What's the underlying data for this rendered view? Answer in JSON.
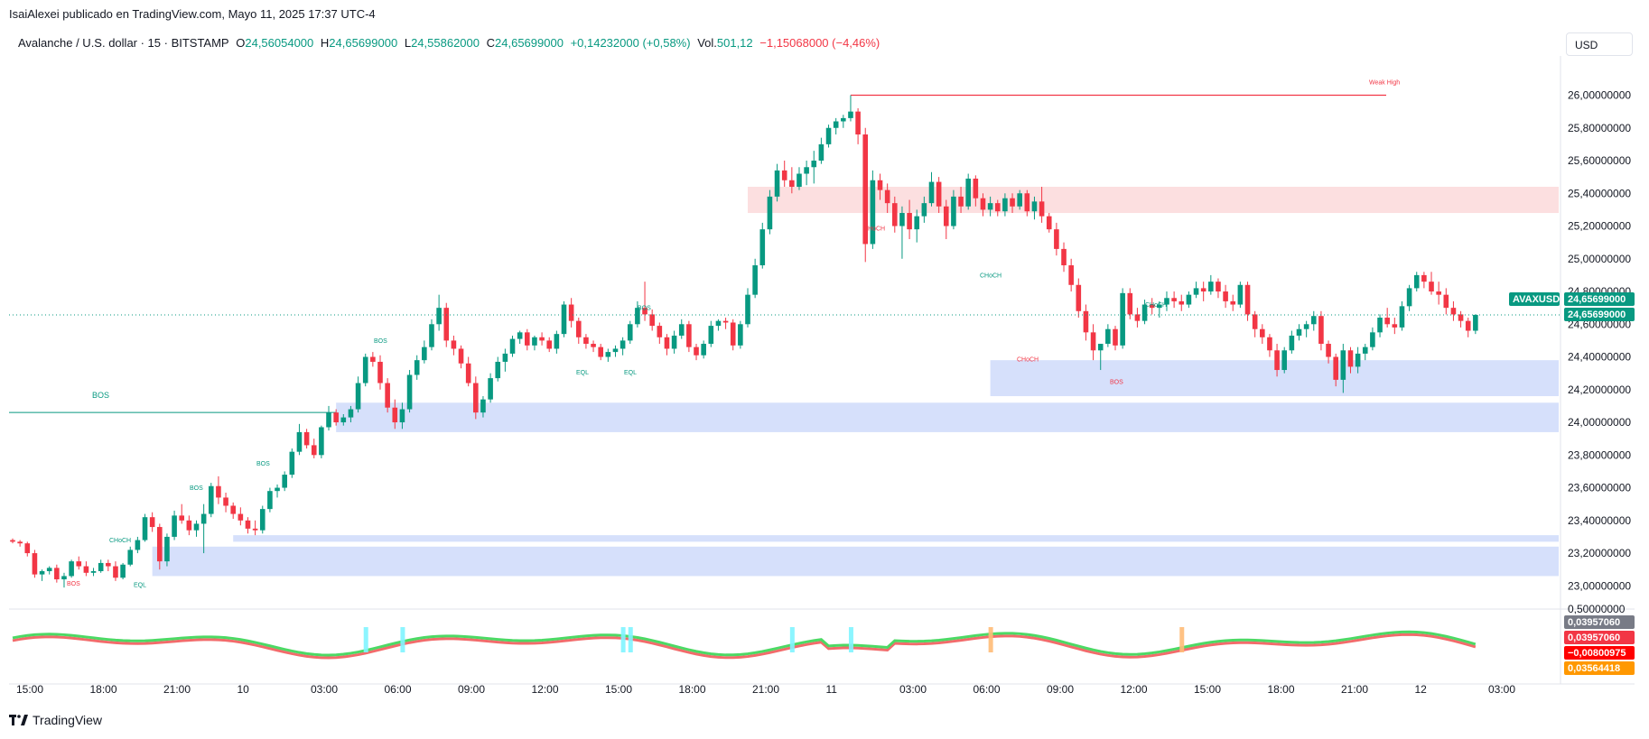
{
  "header": {
    "published": "IsaiAlexei publicado en TradingView.com, Mayo 11, 2025 17:37 UTC-4"
  },
  "legend": {
    "symbol": "Avalanche / U.S. dollar · 15 · BITSTAMP",
    "o_label": "O",
    "o_value": "24,56054000",
    "h_label": "H",
    "h_value": "24,65699000",
    "l_label": "L",
    "l_value": "24,55862000",
    "c_label": "C",
    "c_value": "24,65699000",
    "change": "+0,14232000 (+0,58%)",
    "vol_label": "Vol.",
    "vol_value": "501,12",
    "vol_change": "−1,15068000 (−4,46%)"
  },
  "currency_button": "USD",
  "footer": {
    "brand": "TradingView"
  },
  "colors": {
    "up": "#089981",
    "down": "#f23645",
    "zone_blue": "#d6e0fb",
    "zone_red": "#fcdfe0",
    "osc_green": "#4cd964",
    "osc_red": "#f26b6b"
  },
  "chart_data": {
    "type": "candlestick",
    "symbol": "AVAXUSD",
    "price_axis": {
      "ticks": [
        "26,00000000",
        "25,80000000",
        "25,60000000",
        "25,40000000",
        "25,20000000",
        "25,00000000",
        "24,80000000",
        "24,60000000",
        "24,40000000",
        "24,20000000",
        "24,00000000",
        "23,80000000",
        "23,60000000",
        "23,40000000",
        "23,20000000",
        "23,00000000"
      ],
      "range": [
        22.93,
        26.24
      ]
    },
    "last_price_labels": {
      "symbol": "AVAXUSD",
      "price": "24,65699000",
      "price2": "24,65699000"
    },
    "time_axis": [
      "15:00",
      "18:00",
      "21:00",
      "10",
      "03:00",
      "06:00",
      "09:00",
      "12:00",
      "15:00",
      "18:00",
      "21:00",
      "11",
      "03:00",
      "06:00",
      "09:00",
      "12:00",
      "15:00",
      "18:00",
      "21:00",
      "12",
      "03:00"
    ],
    "candles": [
      [
        23.28,
        23.29,
        23.26,
        23.27
      ],
      [
        23.27,
        23.28,
        23.24,
        23.26
      ],
      [
        23.26,
        23.27,
        23.18,
        23.2
      ],
      [
        23.2,
        23.22,
        23.05,
        23.07
      ],
      [
        23.07,
        23.1,
        23.03,
        23.09
      ],
      [
        23.09,
        23.12,
        23.07,
        23.11
      ],
      [
        23.11,
        23.13,
        23.02,
        23.04
      ],
      [
        23.04,
        23.08,
        22.99,
        23.06
      ],
      [
        23.06,
        23.16,
        23.05,
        23.15
      ],
      [
        23.15,
        23.18,
        23.1,
        23.12
      ],
      [
        23.12,
        23.15,
        23.06,
        23.08
      ],
      [
        23.08,
        23.11,
        23.06,
        23.09
      ],
      [
        23.09,
        23.16,
        23.08,
        23.14
      ],
      [
        23.14,
        23.16,
        23.09,
        23.12
      ],
      [
        23.12,
        23.15,
        23.03,
        23.05
      ],
      [
        23.05,
        23.14,
        23.04,
        23.13
      ],
      [
        23.13,
        23.24,
        23.12,
        23.22
      ],
      [
        23.22,
        23.3,
        23.2,
        23.28
      ],
      [
        23.28,
        23.44,
        23.27,
        23.42
      ],
      [
        23.42,
        23.45,
        23.33,
        23.36
      ],
      [
        23.36,
        23.38,
        23.1,
        23.15
      ],
      [
        23.15,
        23.32,
        23.12,
        23.3
      ],
      [
        23.3,
        23.46,
        23.28,
        23.43
      ],
      [
        23.43,
        23.5,
        23.38,
        23.4
      ],
      [
        23.4,
        23.43,
        23.31,
        23.34
      ],
      [
        23.34,
        23.4,
        23.3,
        23.38
      ],
      [
        23.38,
        23.5,
        23.2,
        23.44
      ],
      [
        23.44,
        23.63,
        23.42,
        23.61
      ],
      [
        23.61,
        23.67,
        23.5,
        23.54
      ],
      [
        23.54,
        23.57,
        23.45,
        23.49
      ],
      [
        23.49,
        23.51,
        23.41,
        23.44
      ],
      [
        23.44,
        23.48,
        23.37,
        23.4
      ],
      [
        23.4,
        23.42,
        23.32,
        23.35
      ],
      [
        23.35,
        23.4,
        23.31,
        23.34
      ],
      [
        23.34,
        23.49,
        23.32,
        23.47
      ],
      [
        23.47,
        23.6,
        23.45,
        23.58
      ],
      [
        23.58,
        23.62,
        23.54,
        23.6
      ],
      [
        23.6,
        23.7,
        23.58,
        23.68
      ],
      [
        23.68,
        23.84,
        23.66,
        23.82
      ],
      [
        23.82,
        23.99,
        23.8,
        23.94
      ],
      [
        23.94,
        23.96,
        23.84,
        23.86
      ],
      [
        23.86,
        23.9,
        23.78,
        23.8
      ],
      [
        23.8,
        23.98,
        23.78,
        23.97
      ],
      [
        23.97,
        24.1,
        23.95,
        24.06
      ],
      [
        24.06,
        24.08,
        23.98,
        24.0
      ],
      [
        24.0,
        24.05,
        23.98,
        24.03
      ],
      [
        24.03,
        24.1,
        24.0,
        24.08
      ],
      [
        24.08,
        24.28,
        24.06,
        24.24
      ],
      [
        24.24,
        24.42,
        24.22,
        24.4
      ],
      [
        24.4,
        24.43,
        24.34,
        24.37
      ],
      [
        24.37,
        24.41,
        24.2,
        24.24
      ],
      [
        24.24,
        24.27,
        24.06,
        24.09
      ],
      [
        24.09,
        24.14,
        23.96,
        24.0
      ],
      [
        24.0,
        24.12,
        23.96,
        24.08
      ],
      [
        24.08,
        24.32,
        24.06,
        24.29
      ],
      [
        24.29,
        24.41,
        24.26,
        24.38
      ],
      [
        24.38,
        24.5,
        24.36,
        24.46
      ],
      [
        24.46,
        24.63,
        24.44,
        24.6
      ],
      [
        24.6,
        24.78,
        24.56,
        24.7
      ],
      [
        24.7,
        24.73,
        24.46,
        24.5
      ],
      [
        24.5,
        24.53,
        24.41,
        24.45
      ],
      [
        24.45,
        24.47,
        24.33,
        24.36
      ],
      [
        24.36,
        24.4,
        24.22,
        24.24
      ],
      [
        24.24,
        24.28,
        24.02,
        24.06
      ],
      [
        24.06,
        24.16,
        24.03,
        24.14
      ],
      [
        24.14,
        24.3,
        24.12,
        24.27
      ],
      [
        24.27,
        24.4,
        24.25,
        24.37
      ],
      [
        24.37,
        24.45,
        24.31,
        24.42
      ],
      [
        24.42,
        24.53,
        24.4,
        24.51
      ],
      [
        24.51,
        24.56,
        24.48,
        24.55
      ],
      [
        24.55,
        24.57,
        24.44,
        24.47
      ],
      [
        24.47,
        24.53,
        24.44,
        24.52
      ],
      [
        24.52,
        24.55,
        24.47,
        24.5
      ],
      [
        24.5,
        24.52,
        24.43,
        24.45
      ],
      [
        24.45,
        24.56,
        24.42,
        24.54
      ],
      [
        24.54,
        24.74,
        24.52,
        24.72
      ],
      [
        24.72,
        24.76,
        24.58,
        24.62
      ],
      [
        24.62,
        24.64,
        24.48,
        24.52
      ],
      [
        24.52,
        24.54,
        24.45,
        24.48
      ],
      [
        24.48,
        24.5,
        24.43,
        24.46
      ],
      [
        24.46,
        24.48,
        24.38,
        24.4
      ],
      [
        24.4,
        24.45,
        24.37,
        24.43
      ],
      [
        24.43,
        24.47,
        24.4,
        24.45
      ],
      [
        24.45,
        24.52,
        24.41,
        24.5
      ],
      [
        24.5,
        24.62,
        24.48,
        24.6
      ],
      [
        24.6,
        24.74,
        24.58,
        24.7
      ],
      [
        24.7,
        24.86,
        24.62,
        24.66
      ],
      [
        24.66,
        24.69,
        24.56,
        24.59
      ],
      [
        24.59,
        24.61,
        24.48,
        24.52
      ],
      [
        24.52,
        24.54,
        24.41,
        24.45
      ],
      [
        24.45,
        24.56,
        24.42,
        24.53
      ],
      [
        24.53,
        24.63,
        24.51,
        24.6
      ],
      [
        24.6,
        24.62,
        24.43,
        24.46
      ],
      [
        24.46,
        24.48,
        24.38,
        24.41
      ],
      [
        24.41,
        24.5,
        24.39,
        24.48
      ],
      [
        24.48,
        24.62,
        24.46,
        24.59
      ],
      [
        24.59,
        24.63,
        24.56,
        24.62
      ],
      [
        24.62,
        24.64,
        24.57,
        24.61
      ],
      [
        24.61,
        24.63,
        24.44,
        24.47
      ],
      [
        24.47,
        24.62,
        24.45,
        24.6
      ],
      [
        24.6,
        24.82,
        24.58,
        24.78
      ],
      [
        24.78,
        25.0,
        24.76,
        24.96
      ],
      [
        24.96,
        25.22,
        24.94,
        25.18
      ],
      [
        25.18,
        25.42,
        25.15,
        25.38
      ],
      [
        25.38,
        25.58,
        25.35,
        25.54
      ],
      [
        25.54,
        25.6,
        25.44,
        25.48
      ],
      [
        25.48,
        25.56,
        25.4,
        25.44
      ],
      [
        25.44,
        25.56,
        25.42,
        25.52
      ],
      [
        25.52,
        25.6,
        25.45,
        25.56
      ],
      [
        25.56,
        25.66,
        25.46,
        25.6
      ],
      [
        25.6,
        25.74,
        25.58,
        25.7
      ],
      [
        25.7,
        25.82,
        25.68,
        25.8
      ],
      [
        25.8,
        25.86,
        25.76,
        25.84
      ],
      [
        25.84,
        25.88,
        25.8,
        25.86
      ],
      [
        25.86,
        26.0,
        25.84,
        25.9
      ],
      [
        25.9,
        25.92,
        25.7,
        25.76
      ],
      [
        25.76,
        25.8,
        24.98,
        25.09
      ],
      [
        25.09,
        25.54,
        25.06,
        25.48
      ],
      [
        25.48,
        25.52,
        25.36,
        25.42
      ],
      [
        25.42,
        25.46,
        25.28,
        25.34
      ],
      [
        25.34,
        25.38,
        25.16,
        25.2
      ],
      [
        25.2,
        25.32,
        25.0,
        25.28
      ],
      [
        25.28,
        25.36,
        25.12,
        25.18
      ],
      [
        25.18,
        25.3,
        25.1,
        25.26
      ],
      [
        25.26,
        25.38,
        25.22,
        25.34
      ],
      [
        25.34,
        25.53,
        25.32,
        25.47
      ],
      [
        25.47,
        25.5,
        25.28,
        25.32
      ],
      [
        25.32,
        25.36,
        25.12,
        25.2
      ],
      [
        25.2,
        25.42,
        25.18,
        25.38
      ],
      [
        25.38,
        25.44,
        25.28,
        25.32
      ],
      [
        25.32,
        25.52,
        25.3,
        25.49
      ],
      [
        25.49,
        25.51,
        25.32,
        25.37
      ],
      [
        25.37,
        25.4,
        25.26,
        25.3
      ],
      [
        25.3,
        25.38,
        25.26,
        25.34
      ],
      [
        25.34,
        25.36,
        25.26,
        25.29
      ],
      [
        25.29,
        25.4,
        25.26,
        25.37
      ],
      [
        25.37,
        25.4,
        25.28,
        25.32
      ],
      [
        25.32,
        25.42,
        25.3,
        25.4
      ],
      [
        25.4,
        25.42,
        25.26,
        25.29
      ],
      [
        25.29,
        25.38,
        25.24,
        25.35
      ],
      [
        25.35,
        25.44,
        25.22,
        25.26
      ],
      [
        25.26,
        25.28,
        25.16,
        25.18
      ],
      [
        25.18,
        25.22,
        25.02,
        25.06
      ],
      [
        25.06,
        25.1,
        24.92,
        24.96
      ],
      [
        24.96,
        25.0,
        24.8,
        24.84
      ],
      [
        24.84,
        24.88,
        24.64,
        24.68
      ],
      [
        24.68,
        24.72,
        24.5,
        24.55
      ],
      [
        24.55,
        24.6,
        24.38,
        24.44
      ],
      [
        24.44,
        24.48,
        24.32,
        24.48
      ],
      [
        24.48,
        24.6,
        24.46,
        24.57
      ],
      [
        24.57,
        24.59,
        24.44,
        24.47
      ],
      [
        24.47,
        24.82,
        24.45,
        24.79
      ],
      [
        24.79,
        24.82,
        24.63,
        24.66
      ],
      [
        24.66,
        24.7,
        24.58,
        24.62
      ],
      [
        24.62,
        24.75,
        24.6,
        24.72
      ],
      [
        24.72,
        24.76,
        24.66,
        24.7
      ],
      [
        24.7,
        24.74,
        24.64,
        24.72
      ],
      [
        24.72,
        24.8,
        24.68,
        24.76
      ],
      [
        24.76,
        24.8,
        24.7,
        24.74
      ],
      [
        24.74,
        24.78,
        24.68,
        24.72
      ],
      [
        24.72,
        24.8,
        24.7,
        24.78
      ],
      [
        24.78,
        24.86,
        24.76,
        24.82
      ],
      [
        24.82,
        24.86,
        24.74,
        24.8
      ],
      [
        24.8,
        24.9,
        24.78,
        24.86
      ],
      [
        24.86,
        24.88,
        24.76,
        24.8
      ],
      [
        24.8,
        24.84,
        24.7,
        24.74
      ],
      [
        24.74,
        24.78,
        24.68,
        24.72
      ],
      [
        24.72,
        24.86,
        24.7,
        24.84
      ],
      [
        24.84,
        24.86,
        24.62,
        24.66
      ],
      [
        24.66,
        24.68,
        24.52,
        24.57
      ],
      [
        24.57,
        24.6,
        24.48,
        24.52
      ],
      [
        24.52,
        24.54,
        24.4,
        24.44
      ],
      [
        24.44,
        24.48,
        24.28,
        24.32
      ],
      [
        24.32,
        24.46,
        24.3,
        24.44
      ],
      [
        24.44,
        24.56,
        24.42,
        24.53
      ],
      [
        24.53,
        24.6,
        24.5,
        24.57
      ],
      [
        24.57,
        24.62,
        24.52,
        24.6
      ],
      [
        24.6,
        24.68,
        24.56,
        24.65
      ],
      [
        24.65,
        24.68,
        24.44,
        24.48
      ],
      [
        24.48,
        24.5,
        24.36,
        24.4
      ],
      [
        24.4,
        24.42,
        24.22,
        24.26
      ],
      [
        24.26,
        24.48,
        24.18,
        24.44
      ],
      [
        24.44,
        24.46,
        24.3,
        24.34
      ],
      [
        24.34,
        24.46,
        24.3,
        24.42
      ],
      [
        24.42,
        24.48,
        24.38,
        24.46
      ],
      [
        24.46,
        24.58,
        24.44,
        24.55
      ],
      [
        24.55,
        24.66,
        24.52,
        24.64
      ],
      [
        24.64,
        24.7,
        24.58,
        24.6
      ],
      [
        24.6,
        24.64,
        24.54,
        24.58
      ],
      [
        24.58,
        24.74,
        24.56,
        24.71
      ],
      [
        24.71,
        24.84,
        24.68,
        24.82
      ],
      [
        24.82,
        24.92,
        24.8,
        24.9
      ],
      [
        24.9,
        24.92,
        24.82,
        24.86
      ],
      [
        24.86,
        24.92,
        24.78,
        24.8
      ],
      [
        24.8,
        24.86,
        24.72,
        24.78
      ],
      [
        24.78,
        24.82,
        24.66,
        24.7
      ],
      [
        24.7,
        24.74,
        24.62,
        24.66
      ],
      [
        24.66,
        24.68,
        24.58,
        24.62
      ],
      [
        24.62,
        24.64,
        24.52,
        24.56
      ],
      [
        24.56,
        24.66,
        24.54,
        24.657
      ]
    ],
    "zones": [
      {
        "type": "supply",
        "top": 25.44,
        "bottom": 25.28,
        "from": 100,
        "color": "red"
      },
      {
        "type": "demand",
        "top": 24.38,
        "bottom": 24.16,
        "from": 133,
        "color": "blue"
      },
      {
        "type": "demand",
        "top": 24.12,
        "bottom": 23.94,
        "from": 44,
        "color": "blue"
      },
      {
        "type": "demand",
        "top": 23.31,
        "bottom": 23.27,
        "from": 30,
        "color": "blue"
      },
      {
        "type": "demand",
        "top": 23.24,
        "bottom": 23.06,
        "from": 19,
        "color": "blue"
      }
    ],
    "weak_high": {
      "label": "Weak High",
      "price": 26.0
    },
    "annotations": [
      {
        "text": "BOS",
        "price": 24.06,
        "color": "#089981",
        "size": 9
      },
      {
        "text": "BOS",
        "price": 23.08,
        "color": "#f23645"
      },
      {
        "text": "CHoCH",
        "price": 23.2,
        "color": "#089981"
      },
      {
        "text": "EQL",
        "price": 23.06,
        "color": "#089981"
      },
      {
        "text": "BOS",
        "price": 23.52,
        "color": "#089981"
      },
      {
        "text": "BOS",
        "price": 23.67,
        "color": "#089981"
      },
      {
        "text": "BOS",
        "price": 24.42,
        "color": "#089981"
      },
      {
        "text": "EQL",
        "price": 24.36,
        "color": "#089981"
      },
      {
        "text": "EQL",
        "price": 24.36,
        "color": "#089981"
      },
      {
        "text": "BOS",
        "price": 24.62,
        "color": "#089981"
      },
      {
        "text": "CHoCH",
        "price": 25.24,
        "color": "#f23645"
      },
      {
        "text": "CHoCH",
        "price": 24.82,
        "color": "#089981"
      },
      {
        "text": "CHoCH",
        "price": 24.44,
        "color": "#f23645"
      },
      {
        "text": "BOS",
        "price": 24.3,
        "color": "#f23645"
      },
      {
        "text": "CHoCH",
        "price": 24.64,
        "color": "#089981"
      }
    ],
    "oscillator": {
      "axis_top": "0,50000000",
      "labels": [
        "0,03957060",
        "0,03957060",
        "−0,00800975",
        "0,03564418"
      ],
      "label_colors": [
        "#787b86",
        "#f23645",
        "#ff0000",
        "#ff9800"
      ]
    }
  }
}
